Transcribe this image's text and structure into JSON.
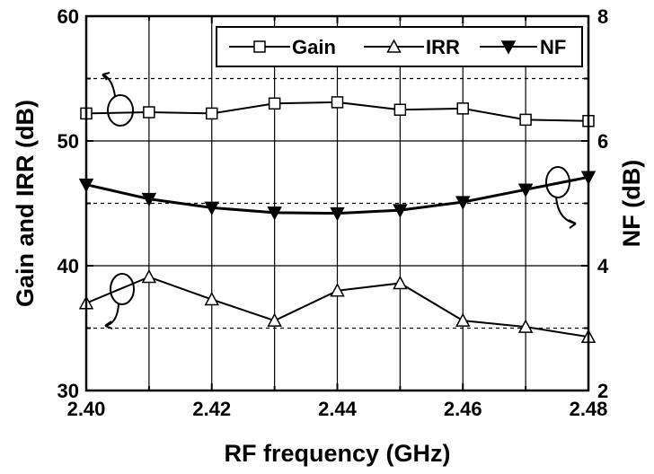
{
  "chart_data": {
    "type": "line",
    "xlabel": "RF frequency (GHz)",
    "ylabel_left": "Gain and IRR (dB)",
    "ylabel_right": "NF (dB)",
    "xlim": [
      2.4,
      2.48
    ],
    "ylim_left": [
      30,
      60
    ],
    "ylim_right": [
      2,
      8
    ],
    "x_ticks": [
      "2.40",
      "2.42",
      "2.44",
      "2.46",
      "2.48"
    ],
    "y_left_ticks": [
      "30",
      "40",
      "50",
      "60"
    ],
    "y_right_ticks": [
      "2",
      "4",
      "6",
      "8"
    ],
    "grid": true,
    "legend_position": "top-right",
    "x": [
      2.4,
      2.41,
      2.42,
      2.43,
      2.44,
      2.45,
      2.46,
      2.47,
      2.48
    ],
    "series": [
      {
        "name": "Gain",
        "axis": "left",
        "marker": "square-open",
        "values": [
          52.2,
          52.3,
          52.2,
          53.0,
          53.1,
          52.5,
          52.6,
          51.7,
          51.6
        ]
      },
      {
        "name": "IRR",
        "axis": "left",
        "marker": "triangle-up-open",
        "values": [
          37.0,
          39.1,
          37.3,
          35.6,
          38.0,
          38.6,
          35.6,
          35.1,
          34.3
        ]
      },
      {
        "name": "NF",
        "axis": "right",
        "marker": "triangle-down-filled",
        "values": [
          5.3,
          5.07,
          4.93,
          4.85,
          4.84,
          4.89,
          5.02,
          5.22,
          5.42
        ]
      }
    ]
  }
}
